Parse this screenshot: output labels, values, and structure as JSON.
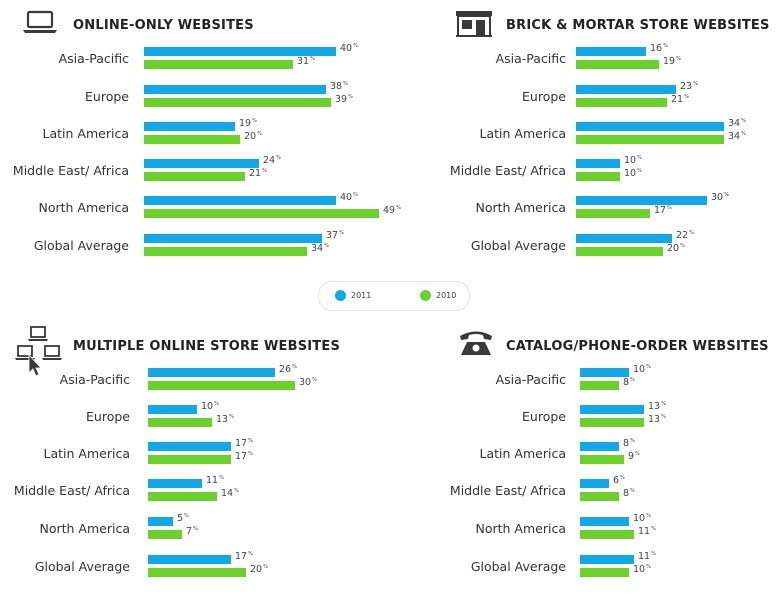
{
  "legend": {
    "series": [
      {
        "name": "2011",
        "color": "#12a8e8"
      },
      {
        "name": "2010",
        "color": "#6bd12a"
      }
    ]
  },
  "panels": [
    {
      "icon": "laptop-icon"
    },
    {
      "icon": "store-icon"
    },
    {
      "icon": "multiple-computers-icon"
    },
    {
      "icon": "telephone-icon"
    }
  ],
  "chart_data": [
    {
      "type": "bar",
      "title": "ONLINE-ONLY WEBSITES",
      "categories": [
        "Asia-Pacific",
        "Europe",
        "Latin America",
        "Middle East/ Africa",
        "North America",
        "Global Average"
      ],
      "series": [
        {
          "name": "2011",
          "values": [
            40,
            38,
            19,
            24,
            40,
            37
          ]
        },
        {
          "name": "2010",
          "values": [
            31,
            39,
            20,
            21,
            49,
            34
          ]
        }
      ],
      "unit": "%"
    },
    {
      "type": "bar",
      "title": "BRICK & MORTAR STORE WEBSITES",
      "categories": [
        "Asia-Pacific",
        "Europe",
        "Latin America",
        "Middle East/ Africa",
        "North America",
        "Global Average"
      ],
      "series": [
        {
          "name": "2011",
          "values": [
            16,
            23,
            34,
            10,
            30,
            22
          ]
        },
        {
          "name": "2010",
          "values": [
            19,
            21,
            34,
            10,
            17,
            20
          ]
        }
      ],
      "unit": "%"
    },
    {
      "type": "bar",
      "title": "MULTIPLE ONLINE STORE WEBSITES",
      "categories": [
        "Asia-Pacific",
        "Europe",
        "Latin America",
        "Middle East/ Africa",
        "North America",
        "Global Average"
      ],
      "series": [
        {
          "name": "2011",
          "values": [
            26,
            10,
            17,
            11,
            5,
            17
          ]
        },
        {
          "name": "2010",
          "values": [
            30,
            13,
            17,
            14,
            7,
            20
          ]
        }
      ],
      "unit": "%"
    },
    {
      "type": "bar",
      "title": "CATALOG/PHONE-ORDER WEBSITES",
      "categories": [
        "Asia-Pacific",
        "Europe",
        "Latin America",
        "Middle East/ Africa",
        "North America",
        "Global Average"
      ],
      "series": [
        {
          "name": "2011",
          "values": [
            10,
            13,
            8,
            6,
            10,
            11
          ]
        },
        {
          "name": "2010",
          "values": [
            8,
            13,
            9,
            8,
            11,
            10
          ]
        }
      ],
      "unit": "%"
    }
  ]
}
